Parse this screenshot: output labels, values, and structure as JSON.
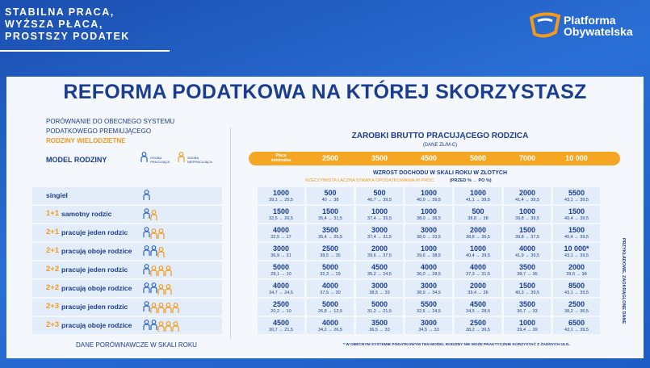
{
  "header": {
    "slogan": [
      "STABILNA PRACA,",
      "WYŻSZA PŁACA,",
      "PROSTSZY PODATEK"
    ],
    "logo": [
      "Platforma",
      "Obywatelska"
    ]
  },
  "title": "REFORMA PODATKOWA NA KTÓREJ SKORZYSTASZ",
  "intro": {
    "lines": [
      "PORÓWNANIE DO OBECNEGO SYSTEMU",
      "PODATKOWEGO PREMIUJĄCEGO"
    ],
    "highlight": "RODZINY WIELODZIETNE"
  },
  "legend": {
    "model": "MODEL RODZINY",
    "working": "OSOBA PRACUJĄCA",
    "nonworking": "OSOBA NIEPRACUJĄCA"
  },
  "salary": {
    "title": "ZAROBKI BRUTTO PRACUJĄCEGO RODZICA",
    "unit": "(DANE ZŁ/M-C)",
    "columns": [
      "Płaca minimalna",
      "2500",
      "3500",
      "4500",
      "5000",
      "7000",
      "10 000"
    ]
  },
  "subheader": {
    "title": "WZROST DOCHODU W SKALI ROKU W ZŁOTYCH",
    "rate_note": "RZECZYWISTA ŁĄCZNA STAWKA OPODATKOWANIA W PROC.",
    "rate_format": "(PRZED % → PO %)"
  },
  "rows": [
    {
      "label": "singiel",
      "cells": [
        {
          "value": "1000",
          "rate": "39,1 → 25,5"
        },
        {
          "value": "500",
          "rate": "40 → 38"
        },
        {
          "value": "500",
          "rate": "40,7 → 39,5"
        },
        {
          "value": "1000",
          "rate": "40,9 → 39,5"
        },
        {
          "value": "1000",
          "rate": "41,1 → 39,5"
        },
        {
          "value": "2000",
          "rate": "41,4 → 39,5"
        },
        {
          "value": "5500",
          "rate": "43,1 → 39,5"
        }
      ]
    },
    {
      "size": "1+1",
      "label": "samotny rodzic",
      "cells": [
        {
          "value": "1500",
          "rate": "32,5 → 26,5"
        },
        {
          "value": "1500",
          "rate": "35,4 → 31,5"
        },
        {
          "value": "1000",
          "rate": "37,4 → 35,5"
        },
        {
          "value": "1000",
          "rate": "38,0 → 36,5"
        },
        {
          "value": "500",
          "rate": "38,8 → 38"
        },
        {
          "value": "1000",
          "rate": "39,8 → 39,5"
        },
        {
          "value": "1500",
          "rate": "40,4 → 39,5"
        }
      ]
    },
    {
      "size": "2+1",
      "label": "pracuje jeden rodzic",
      "cells": [
        {
          "value": "4000",
          "rate": "32,5 → 17"
        },
        {
          "value": "3500",
          "rate": "35,4 → 25,5"
        },
        {
          "value": "3000",
          "rate": "37,4 → 31,5"
        },
        {
          "value": "3000",
          "rate": "38,0 → 33,5"
        },
        {
          "value": "2000",
          "rate": "38,8 → 35,5"
        },
        {
          "value": "1500",
          "rate": "39,8 → 37,5"
        },
        {
          "value": "1500",
          "rate": "40,4 → 39,5"
        }
      ]
    },
    {
      "size": "2+1",
      "label": "pracują oboje rodzice",
      "cells": [
        {
          "value": "3000",
          "rate": "36,9 → 31"
        },
        {
          "value": "2500",
          "rate": "38,5 → 35"
        },
        {
          "value": "2000",
          "rate": "39,6 → 37,5"
        },
        {
          "value": "1000",
          "rate": "39,6 → 38,5"
        },
        {
          "value": "1000",
          "rate": "40,4 → 39,5"
        },
        {
          "value": "4000",
          "rate": "41,9 → 39,5"
        },
        {
          "value": "10 000*",
          "rate": "43,1 → 39,5"
        }
      ]
    },
    {
      "size": "2+2",
      "label": "pracuje jeden rodzic",
      "cells": [
        {
          "value": "5000",
          "rate": "28,1 → 10"
        },
        {
          "value": "5000",
          "rate": "32,3 → 19"
        },
        {
          "value": "4500",
          "rate": "35,2 → 24,5"
        },
        {
          "value": "4000",
          "rate": "36,0 → 28,5"
        },
        {
          "value": "4000",
          "rate": "37,3 → 31,5"
        },
        {
          "value": "3500",
          "rate": "38,7 → 35"
        },
        {
          "value": "2000",
          "rate": "39,6 → 38"
        }
      ]
    },
    {
      "size": "2+2",
      "label": "pracują oboje rodzice",
      "cells": [
        {
          "value": "4000",
          "rate": "34,7 → 24,5"
        },
        {
          "value": "4000",
          "rate": "37,5 → 30"
        },
        {
          "value": "3000",
          "rate": "38,5 → 33"
        },
        {
          "value": "3000",
          "rate": "38,9 → 34,5"
        },
        {
          "value": "2000",
          "rate": "39,4 → 36"
        },
        {
          "value": "1500",
          "rate": "40,3 → 39,5"
        },
        {
          "value": "8500",
          "rate": "43,1 → 39,5"
        }
      ]
    },
    {
      "size": "2+3",
      "label": "pracuje jeden rodzic",
      "cells": [
        {
          "value": "2500",
          "rate": "20,2 → 10"
        },
        {
          "value": "5000",
          "rate": "26,8 → 12,5"
        },
        {
          "value": "5000",
          "rate": "31,2 → 21,5"
        },
        {
          "value": "5500",
          "rate": "32,6 → 24,5"
        },
        {
          "value": "4500",
          "rate": "34,5 → 28,5"
        },
        {
          "value": "3500",
          "rate": "36,7 → 33"
        },
        {
          "value": "2500",
          "rate": "38,2 → 36,5"
        }
      ]
    },
    {
      "size": "2+3",
      "label": "pracują oboje rodzice",
      "cells": [
        {
          "value": "4500",
          "rate": "30,7 → 21,5"
        },
        {
          "value": "4000",
          "rate": "34,2 → 26,5"
        },
        {
          "value": "3500",
          "rate": "36,5 → 33"
        },
        {
          "value": "3000",
          "rate": "34,5 → 33"
        },
        {
          "value": "2500",
          "rate": "38,2 → 36,5"
        },
        {
          "value": "1000",
          "rate": "39,4 → 39"
        },
        {
          "value": "6500",
          "rate": "43,1 → 39,5"
        }
      ]
    }
  ],
  "footer": {
    "left": "DANE PORÓWNAWCZE W SKALI ROKU",
    "note": "* W OBECNYM SYSTEMIE PODATKOWYM TEN MODEL RODZINY NIE MOŻE PRAKTYCZNIE KORZYSTAĆ Z ŻADNYCH ULG."
  },
  "side_note": "PRZYKŁADOWE, ZAOKRĄGLONE DANE"
}
